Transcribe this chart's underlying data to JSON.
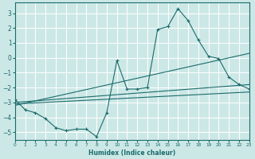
{
  "xlabel": "Humidex (Indice chaleur)",
  "background_color": "#cce8e6",
  "grid_color": "#ffffff",
  "line_color": "#1a6b6b",
  "xlim": [
    0,
    23
  ],
  "ylim": [
    -5.5,
    3.7
  ],
  "yticks": [
    -5,
    -4,
    -3,
    -2,
    -1,
    0,
    1,
    2,
    3
  ],
  "xticks": [
    0,
    1,
    2,
    3,
    4,
    5,
    6,
    7,
    8,
    9,
    10,
    11,
    12,
    13,
    14,
    15,
    16,
    17,
    18,
    19,
    20,
    21,
    22,
    23
  ],
  "main_curve_x": [
    0,
    1,
    2,
    3,
    4,
    5,
    6,
    7,
    8,
    9,
    10,
    11,
    12,
    13,
    14,
    15,
    16,
    17,
    18,
    19,
    20,
    21,
    22,
    23
  ],
  "main_curve_y": [
    -2.8,
    -3.5,
    -3.7,
    -4.1,
    -4.7,
    -4.9,
    -4.8,
    -4.8,
    -5.3,
    -3.7,
    -0.2,
    -2.1,
    -2.1,
    -2.0,
    1.9,
    2.1,
    3.3,
    2.5,
    1.2,
    0.1,
    -0.05,
    -1.3,
    -1.8,
    -2.1
  ],
  "diag_line1": {
    "x": [
      0,
      23
    ],
    "y": [
      -3.0,
      -1.8
    ]
  },
  "diag_line2": {
    "x": [
      0,
      23
    ],
    "y": [
      -3.1,
      -2.3
    ]
  },
  "diag_line3": {
    "x": [
      0,
      23
    ],
    "y": [
      -3.2,
      0.3
    ]
  }
}
